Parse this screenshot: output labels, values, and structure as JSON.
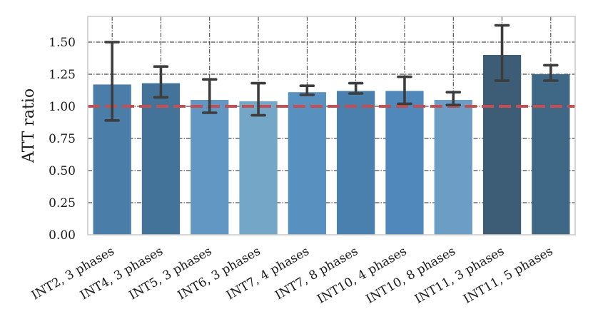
{
  "chart_data": {
    "type": "bar",
    "title": "",
    "xlabel": "",
    "ylabel": "ATT ratio",
    "ylim": [
      0,
      1.7
    ],
    "yticks": [
      0.0,
      0.25,
      0.5,
      0.75,
      1.0,
      1.25,
      1.5
    ],
    "ytick_labels": [
      "0.00",
      "0.25",
      "0.50",
      "0.75",
      "1.00",
      "1.25",
      "1.50"
    ],
    "grid": true,
    "reference_line": {
      "y": 1.0,
      "style": "dashed",
      "color": "#c44e52"
    },
    "categories": [
      "INT2, 3 phases",
      "INT4, 3 phases",
      "INT5, 3 phases",
      "INT6, 3 phases",
      "INT7, 4 phases",
      "INT7, 8 phases",
      "INT10, 4 phases",
      "INT10, 8 phases",
      "INT11, 3 phases",
      "INT11, 5 phases"
    ],
    "values": [
      1.17,
      1.18,
      1.05,
      1.04,
      1.11,
      1.12,
      1.12,
      1.05,
      1.4,
      1.25
    ],
    "error_low": [
      0.89,
      1.07,
      0.95,
      0.93,
      1.09,
      1.1,
      1.02,
      1.01,
      1.2,
      1.2
    ],
    "error_high": [
      1.5,
      1.31,
      1.21,
      1.18,
      1.16,
      1.18,
      1.23,
      1.11,
      1.63,
      1.32
    ],
    "bar_colors": [
      "#4a7ea8",
      "#44739a",
      "#6197c2",
      "#74a6c8",
      "#5891c0",
      "#4a80ad",
      "#5188bb",
      "#6c9dc4",
      "#3d5c75",
      "#3f6886"
    ]
  }
}
